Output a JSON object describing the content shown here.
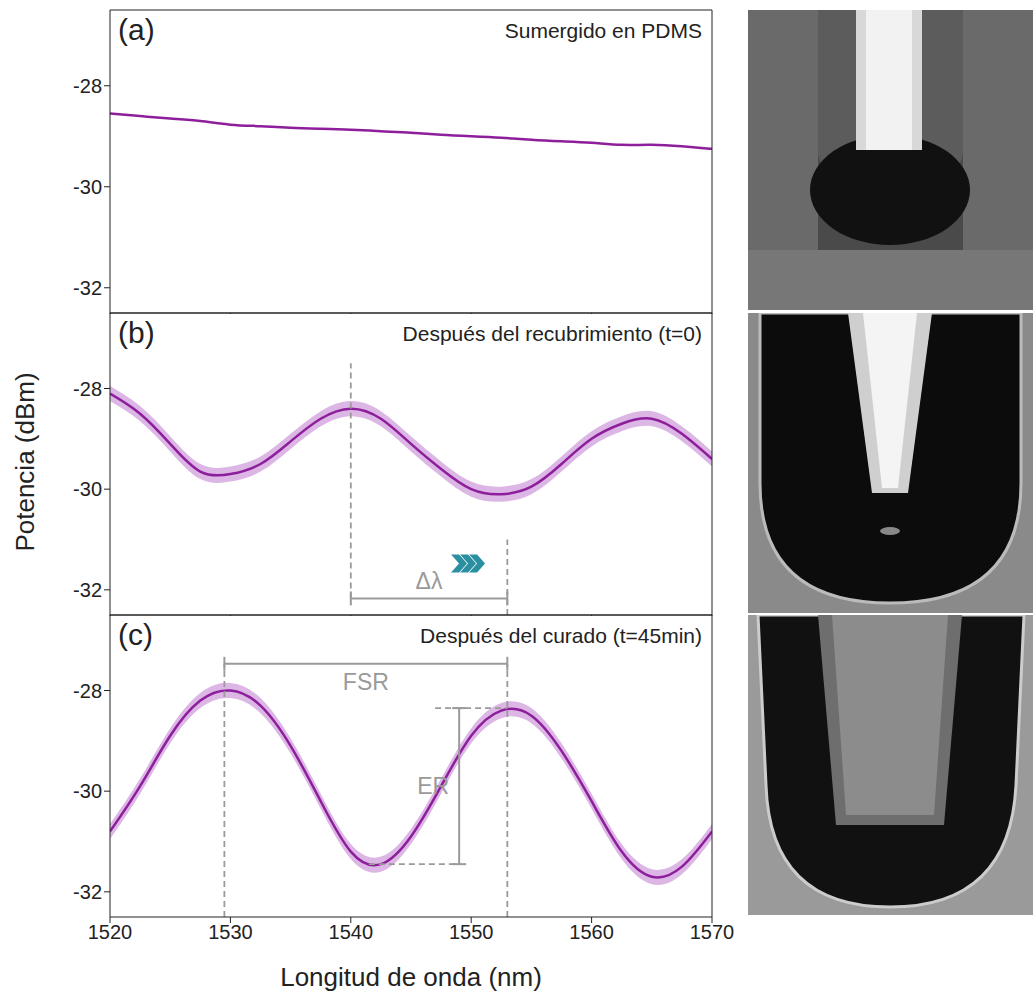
{
  "chart_data": [
    {
      "type": "line",
      "title": "(a)",
      "subtitle": "Sumergido en PDMS",
      "color": "#8e1f9c",
      "tick_labels": "y",
      "x": [
        1520,
        1522.5,
        1525,
        1527.5,
        1530,
        1532.5,
        1535,
        1537.5,
        1540,
        1542.5,
        1545,
        1547.5,
        1550,
        1552.5,
        1555,
        1557.5,
        1560,
        1562.5,
        1565,
        1567.5,
        1570
      ],
      "values": [
        -28.55,
        -28.6,
        -28.65,
        -28.7,
        -28.77,
        -28.8,
        -28.83,
        -28.85,
        -28.87,
        -28.9,
        -28.93,
        -28.97,
        -29.0,
        -29.03,
        -29.07,
        -29.1,
        -29.13,
        -29.17,
        -29.17,
        -29.2,
        -29.25
      ],
      "xlim": [
        1520,
        1570
      ],
      "xticks": [
        1520,
        1530,
        1540,
        1550,
        1560,
        1570
      ],
      "ylim": [
        -32.5,
        -26.5
      ],
      "yticks": [
        -32,
        -30,
        -28
      ],
      "annotations": []
    },
    {
      "type": "line",
      "title": "(b)",
      "subtitle": "Después del recubrimiento (t=0)",
      "color": "#8e1f9c",
      "tick_labels": "y",
      "band": 0.15,
      "x": [
        1520,
        1522.5,
        1525,
        1527.5,
        1530,
        1532.5,
        1535,
        1537.5,
        1540,
        1542.5,
        1545,
        1547.5,
        1550,
        1552.5,
        1555,
        1557.5,
        1560,
        1562.5,
        1565,
        1567.5,
        1570
      ],
      "values": [
        -28.1,
        -28.5,
        -29.1,
        -29.65,
        -29.7,
        -29.5,
        -29.05,
        -28.6,
        -28.4,
        -28.6,
        -29.1,
        -29.6,
        -30.0,
        -30.1,
        -29.95,
        -29.5,
        -29.0,
        -28.7,
        -28.6,
        -28.9,
        -29.4
      ],
      "xlim": [
        1520,
        1570
      ],
      "xticks": [
        1520,
        1530,
        1540,
        1550,
        1560,
        1570
      ],
      "ylim": [
        -32.5,
        -26.5
      ],
      "yticks": [
        -32,
        -30,
        -28
      ],
      "annotations": [
        {
          "type": "dashed",
          "x": 1540,
          "y": [
            -32.17,
            -27.5
          ]
        },
        {
          "type": "dashed",
          "x": 1553,
          "y": [
            -32.5,
            -31.0
          ]
        },
        {
          "type": "bracket",
          "text": "Δλ",
          "x": [
            1540,
            1553
          ],
          "y": -32.17
        }
      ]
    },
    {
      "type": "line",
      "title": "(c)",
      "subtitle": "Después del curado (t=45min)",
      "color": "#8e1f9c",
      "band": 0.15,
      "x": [
        1520,
        1522.5,
        1525,
        1527.5,
        1530,
        1532.5,
        1535,
        1537.5,
        1540,
        1542.5,
        1545,
        1547.5,
        1550,
        1552.5,
        1555,
        1557.5,
        1560,
        1562.5,
        1565,
        1567.5,
        1570
      ],
      "values": [
        -30.8,
        -29.9,
        -28.9,
        -28.2,
        -28.0,
        -28.3,
        -29.1,
        -30.2,
        -31.2,
        -31.45,
        -30.9,
        -29.9,
        -28.9,
        -28.4,
        -28.5,
        -29.2,
        -30.2,
        -31.2,
        -31.7,
        -31.5,
        -30.8
      ],
      "xlim": [
        1520,
        1570
      ],
      "xticks": [
        1520,
        1530,
        1540,
        1550,
        1560,
        1570
      ],
      "ylim": [
        -32.5,
        -26.5
      ],
      "yticks": [
        -32,
        -30,
        -28
      ],
      "annotations": [
        {
          "type": "dashed",
          "x": 1529.5,
          "y": [
            -32.5,
            -27.47
          ]
        },
        {
          "type": "dashed",
          "x": 1553,
          "y": [
            -32.5,
            -27.47
          ]
        },
        {
          "type": "dashed",
          "x": [
            1547,
            1553
          ],
          "y": -28.35
        },
        {
          "type": "dashed",
          "x": [
            1541.5,
            1549
          ],
          "y": -31.45
        },
        {
          "type": "bracket",
          "text": "FSR",
          "x": [
            1529.5,
            1553
          ],
          "y": -27.47
        },
        {
          "type": "bracket",
          "text": "ER",
          "x": 1549,
          "y": [
            -28.35,
            -31.45
          ]
        }
      ]
    }
  ],
  "x_label": "Longitud de onda (nm)",
  "y_label": "Potencia (dBm)"
}
